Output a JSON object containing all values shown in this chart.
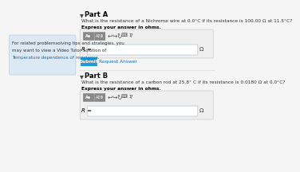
{
  "bg_color": "#f5f5f5",
  "left_box_color": "#dce9f5",
  "left_box_lines": [
    "For related problemsolving tips and strategies, you",
    "may want to view a Video Tutor Solution of",
    "Temperature dependence of resistance."
  ],
  "part_a_label": "Part A",
  "part_a_question": "What is the resistance of a Nichrome wire at 0.0°C if its resistance is 100.00 Ω at 11.5°C?",
  "part_a_sub": "Express your answer in ohms.",
  "part_a_r_label": "R =",
  "part_a_omega": "Ω",
  "submit_btn_color": "#1a9cd8",
  "submit_btn_text": "Submit",
  "request_answer_text": "Request Answer",
  "part_b_label": "Part B",
  "part_b_question": "What is the resistance of a carbon rod at 25.8° C if its resistance is 0.0180 Ω at 0.0°C?",
  "part_b_sub": "Express your answer in ohms.",
  "part_b_r_label": "R =",
  "part_b_omega": "Ω",
  "input_box_color": "#ffffff",
  "input_border_color": "#b0c4d8",
  "question_mark": "?"
}
